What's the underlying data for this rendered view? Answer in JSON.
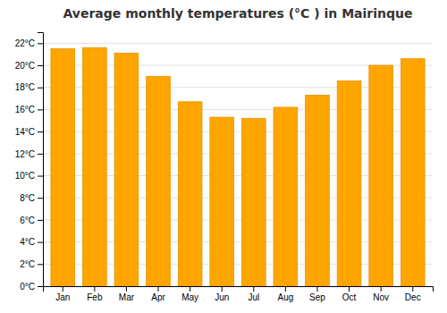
{
  "chart_data": {
    "type": "bar",
    "title": "Average monthly temperatures (°C ) in Mairinque",
    "categories": [
      "Jan",
      "Feb",
      "Mar",
      "Apr",
      "May",
      "Jun",
      "Jul",
      "Aug",
      "Sep",
      "Oct",
      "Nov",
      "Dec"
    ],
    "values": [
      21.5,
      21.6,
      21.1,
      19.0,
      16.7,
      15.3,
      15.2,
      16.2,
      17.3,
      18.6,
      20.0,
      20.6
    ],
    "color": "#FFA500",
    "ylim": [
      0,
      23
    ],
    "yticks": [
      {
        "value": 0,
        "label": "0°C"
      },
      {
        "value": 2,
        "label": "2°C"
      },
      {
        "value": 4,
        "label": "4°C"
      },
      {
        "value": 6,
        "label": "6°C"
      },
      {
        "value": 8,
        "label": "8°C"
      },
      {
        "value": 10,
        "label": "10°C"
      },
      {
        "value": 12,
        "label": "12°C"
      },
      {
        "value": 14,
        "label": "14°C"
      },
      {
        "value": 16,
        "label": "16°C"
      },
      {
        "value": 18,
        "label": "18°C"
      },
      {
        "value": 20,
        "label": "20°C"
      },
      {
        "value": 22,
        "label": "22°C"
      }
    ],
    "grid": true
  }
}
